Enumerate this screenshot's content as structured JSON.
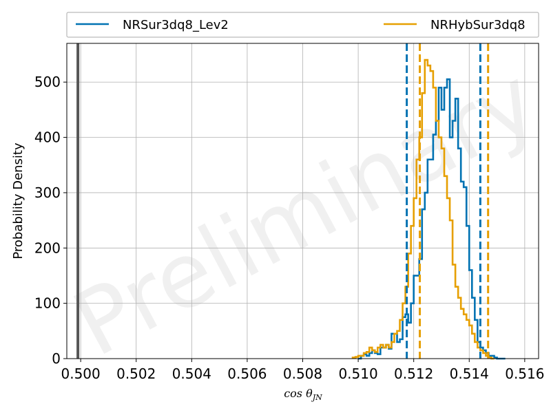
{
  "chart_data": {
    "type": "histogram",
    "xlabel": "cos θ_JN",
    "ylabel": "Probability Density",
    "watermark": "Preliminary",
    "xlim": [
      0.4995,
      0.5165
    ],
    "ylim": [
      0,
      570
    ],
    "xticks": [
      0.5,
      0.502,
      0.504,
      0.506,
      0.508,
      0.51,
      0.512,
      0.514,
      0.516
    ],
    "xtick_labels": [
      "0.500",
      "0.502",
      "0.504",
      "0.506",
      "0.508",
      "0.510",
      "0.512",
      "0.514",
      "0.516"
    ],
    "yticks": [
      0,
      100,
      200,
      300,
      400,
      500
    ],
    "ytick_labels": [
      "0",
      "100",
      "200",
      "300",
      "400",
      "500"
    ],
    "grid": true,
    "legend_position": "top, above plot",
    "injection_line": {
      "x": 0.4999,
      "color": "#555555"
    },
    "series": [
      {
        "name": "NRSur3dq8_Lev2",
        "color": "#0072b2",
        "bin_start": 0.51,
        "bin_width": 0.0001,
        "values": [
          0,
          5,
          8,
          5,
          10,
          15,
          10,
          8,
          20,
          20,
          25,
          18,
          45,
          45,
          30,
          35,
          75,
          80,
          65,
          100,
          150,
          150,
          180,
          270,
          300,
          360,
          360,
          405,
          430,
          490,
          450,
          490,
          505,
          400,
          430,
          470,
          380,
          320,
          310,
          240,
          160,
          110,
          70,
          30,
          20,
          15,
          10,
          5,
          5,
          2,
          0,
          0,
          0
        ],
        "credible_interval": [
          0.51175,
          0.5144
        ]
      },
      {
        "name": "NRHybSur3dq8",
        "color": "#e69f00",
        "bin_start": 0.5098,
        "bin_width": 0.0001,
        "values": [
          2,
          3,
          5,
          5,
          10,
          12,
          20,
          15,
          12,
          20,
          25,
          20,
          25,
          20,
          30,
          45,
          50,
          70,
          100,
          130,
          190,
          240,
          290,
          360,
          400,
          480,
          540,
          530,
          520,
          490,
          430,
          400,
          380,
          330,
          290,
          250,
          170,
          130,
          110,
          90,
          80,
          70,
          60,
          45,
          30,
          20,
          15,
          10,
          5,
          2,
          0
        ],
        "credible_interval": [
          0.51222,
          0.51468
        ]
      }
    ]
  }
}
